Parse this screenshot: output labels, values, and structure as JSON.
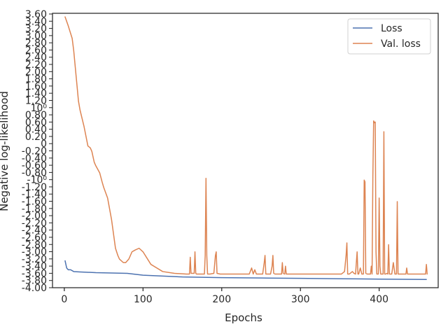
{
  "chart_data": {
    "type": "line",
    "title": "",
    "xlabel": "Epochs",
    "ylabel": "Negative log-likelihood",
    "xlim": [
      -15,
      475
    ],
    "ylim": [
      -4.0,
      3.65
    ],
    "x_ticks": [
      0,
      100,
      200,
      300,
      400
    ],
    "y_tick_labels": [
      "3.60",
      "3.40",
      "3.20",
      "3.00",
      "2.80",
      "2.60",
      "2.40",
      "2.20",
      "2.00",
      "1.80",
      "1.60",
      "1.40",
      "1.20",
      "10⁰",
      "0.80",
      "0.60",
      "0.40",
      "0.20",
      "0",
      "-0.20",
      "-0.40",
      "-0.60",
      "-0.80",
      "-10⁰",
      "-1.20",
      "-1.40",
      "-1.60",
      "-1.80",
      "-2.00",
      "-2.20",
      "-2.40",
      "-2.60",
      "-2.80",
      "-3.00",
      "-3.20",
      "-3.40",
      "-3.60",
      "-3.80",
      "-4.00"
    ],
    "legend": {
      "position": "upper-right",
      "entries": [
        "Loss",
        "Val. loss"
      ]
    },
    "series": [
      {
        "name": "Loss",
        "color": "#4c72b0",
        "x": [
          1,
          3,
          5,
          8,
          12,
          20,
          40,
          80,
          100,
          150,
          200,
          250,
          300,
          350,
          400,
          460
        ],
        "y": [
          -3.25,
          -3.45,
          -3.5,
          -3.5,
          -3.55,
          -3.56,
          -3.58,
          -3.6,
          -3.65,
          -3.7,
          -3.72,
          -3.73,
          -3.74,
          -3.75,
          -3.76,
          -3.77
        ]
      },
      {
        "name": "Val. loss",
        "color": "#dd8452",
        "x": [
          1,
          5,
          10,
          12,
          15,
          18,
          20,
          25,
          30,
          33,
          35,
          38,
          40,
          45,
          48,
          50,
          55,
          60,
          65,
          68,
          70,
          75,
          78,
          82,
          86,
          90,
          95,
          100,
          110,
          125,
          140,
          155,
          159,
          160,
          161,
          165,
          166,
          167,
          168,
          172,
          174,
          176,
          178,
          179,
          180,
          181,
          182,
          185,
          190,
          192,
          193,
          194,
          198,
          202,
          210,
          225,
          235,
          238,
          240,
          242,
          244,
          246,
          248,
          252,
          254,
          255,
          256,
          258,
          262,
          264,
          265,
          266,
          268,
          272,
          276,
          277,
          278,
          280,
          281,
          282,
          284,
          288,
          298,
          310,
          325,
          340,
          352,
          356,
          358,
          359,
          360,
          362,
          366,
          368,
          370,
          371,
          372,
          373,
          374,
          376,
          378,
          379,
          380,
          381,
          382,
          383,
          385,
          387,
          389,
          390,
          391,
          392,
          393,
          394,
          395,
          396,
          397,
          398,
          399,
          400,
          401,
          402,
          403,
          404,
          405,
          406,
          407,
          408,
          410,
          411,
          412,
          413,
          415,
          416,
          418,
          420,
          421,
          422,
          423,
          424,
          426,
          430,
          434,
          435,
          436,
          440,
          450,
          458,
          459,
          460,
          461
        ],
        "y": [
          3.55,
          3.3,
          2.95,
          2.6,
          1.9,
          1.2,
          0.95,
          0.5,
          -0.05,
          -0.1,
          -0.2,
          -0.5,
          -0.6,
          -0.8,
          -1.05,
          -1.2,
          -1.5,
          -2.1,
          -2.9,
          -3.1,
          -3.2,
          -3.3,
          -3.3,
          -3.2,
          -3.0,
          -2.95,
          -2.9,
          -3.0,
          -3.35,
          -3.55,
          -3.6,
          -3.62,
          -3.62,
          -3.15,
          -3.6,
          -3.6,
          -3.0,
          -3.6,
          -3.62,
          -3.62,
          -3.62,
          -3.62,
          -3.62,
          -3.1,
          -0.95,
          -3.1,
          -3.62,
          -3.62,
          -3.6,
          -3.1,
          -3.0,
          -3.6,
          -3.62,
          -3.62,
          -3.62,
          -3.62,
          -3.62,
          -3.45,
          -3.62,
          -3.5,
          -3.62,
          -3.62,
          -3.62,
          -3.62,
          -3.3,
          -3.1,
          -3.62,
          -3.62,
          -3.62,
          -3.4,
          -3.1,
          -3.6,
          -3.62,
          -3.62,
          -3.62,
          -3.3,
          -3.6,
          -3.62,
          -3.4,
          -3.62,
          -3.62,
          -3.62,
          -3.62,
          -3.62,
          -3.62,
          -3.62,
          -3.62,
          -3.55,
          -3.1,
          -2.75,
          -3.62,
          -3.62,
          -3.55,
          -3.6,
          -3.62,
          -3.3,
          -3.0,
          -3.62,
          -3.62,
          -3.45,
          -3.62,
          -3.62,
          -3.62,
          -1.0,
          -1.05,
          -3.6,
          -3.62,
          -3.62,
          -3.62,
          -3.4,
          -3.62,
          -0.9,
          0.65,
          0.6,
          0.62,
          -3.0,
          -3.62,
          -3.62,
          -3.62,
          -1.5,
          -3.4,
          -3.62,
          -3.62,
          -3.62,
          -3.62,
          0.35,
          -3.62,
          -3.62,
          -3.6,
          -3.62,
          -2.8,
          -3.62,
          -3.62,
          -3.62,
          -3.3,
          -3.62,
          -3.62,
          -3.62,
          -1.6,
          -3.62,
          -3.62,
          -3.62,
          -3.62,
          -3.45,
          -3.62,
          -3.62,
          -3.62,
          -3.62,
          -3.62,
          -3.35,
          -3.62
        ]
      }
    ]
  }
}
